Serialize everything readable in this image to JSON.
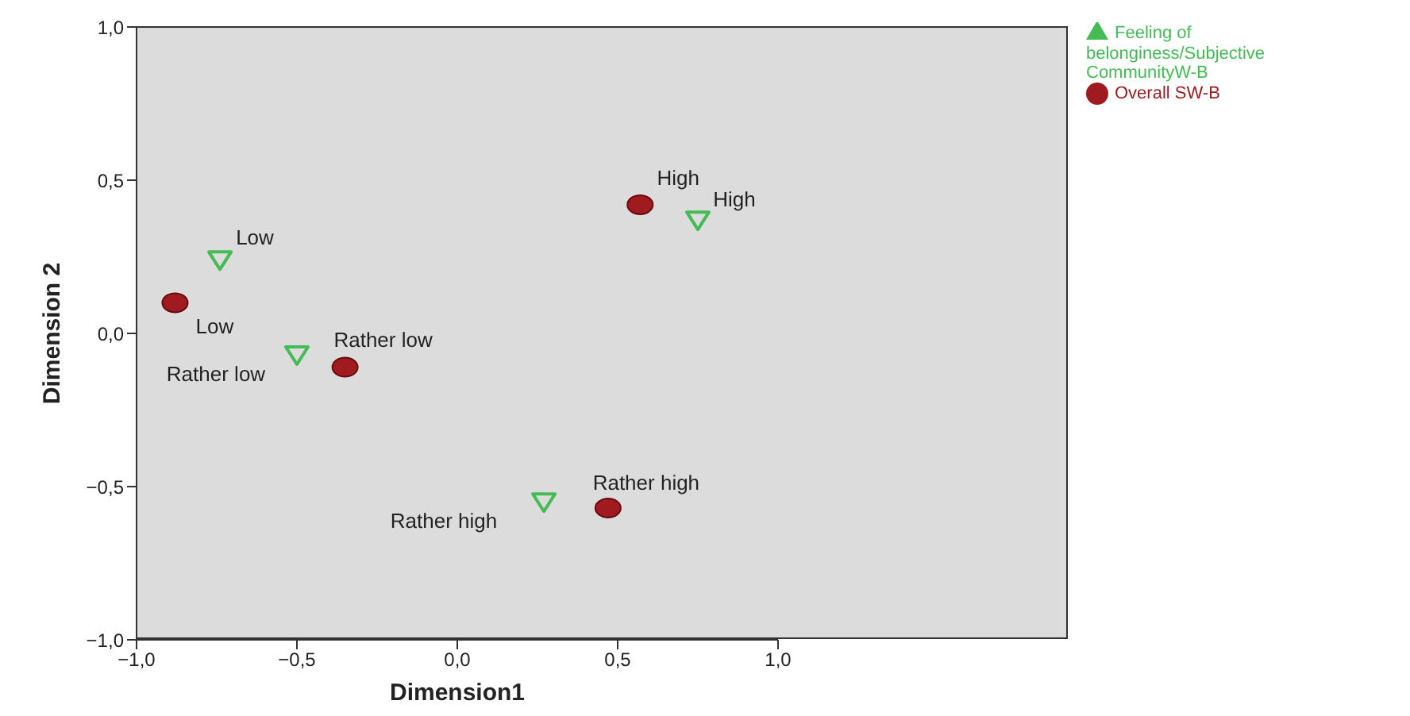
{
  "chart_data": {
    "type": "scatter",
    "xlabel": "Dimension1",
    "ylabel": "Dimension 2",
    "xlim": [
      -1,
      1
    ],
    "ylim": [
      -1,
      1
    ],
    "xticks": [
      {
        "value": -1,
        "label": "−1,0"
      },
      {
        "value": -0.5,
        "label": "−0,5"
      },
      {
        "value": 0,
        "label": "0,0"
      },
      {
        "value": 0.5,
        "label": "0,5"
      },
      {
        "value": 1,
        "label": "1,0"
      }
    ],
    "yticks": [
      {
        "value": -1,
        "label": "−1,0"
      },
      {
        "value": -0.5,
        "label": "−0,5"
      },
      {
        "value": 0,
        "label": "0,0"
      },
      {
        "value": 0.5,
        "label": "0,5"
      },
      {
        "value": 1,
        "label": "1,0"
      }
    ],
    "grid": false,
    "legend": "top right",
    "series": [
      {
        "name": "Overall SW-B",
        "color": "#a01b1f",
        "marker": "circle",
        "x": [
          -0.88,
          -0.35,
          0.57,
          0.47
        ],
        "values": [
          0.1,
          -0.11,
          0.42,
          -0.57
        ]
      },
      {
        "name": "Feeling of belonginess/Subjective CommunityW-B",
        "color": "#44bb55",
        "marker": "triangle",
        "x": [
          -0.74,
          -0.5,
          0.75,
          0.27
        ],
        "values": [
          0.24,
          -0.07,
          0.37,
          -0.55
        ]
      }
    ],
    "annotations": [
      {
        "text": "Low",
        "x": -0.88,
        "y": 0.1
      },
      {
        "text": "Rather low",
        "x": -0.35,
        "y": -0.11
      },
      {
        "text": "High",
        "x": 0.57,
        "y": 0.42
      },
      {
        "text": "Rather high",
        "x": 0.47,
        "y": -0.57
      },
      {
        "text": "Low",
        "x": -0.74,
        "y": 0.24
      },
      {
        "text": "Rather low",
        "x": -0.5,
        "y": -0.07
      },
      {
        "text": "High",
        "x": 0.75,
        "y": 0.37
      },
      {
        "text": "Rather high",
        "x": 0.27,
        "y": -0.55
      }
    ]
  }
}
